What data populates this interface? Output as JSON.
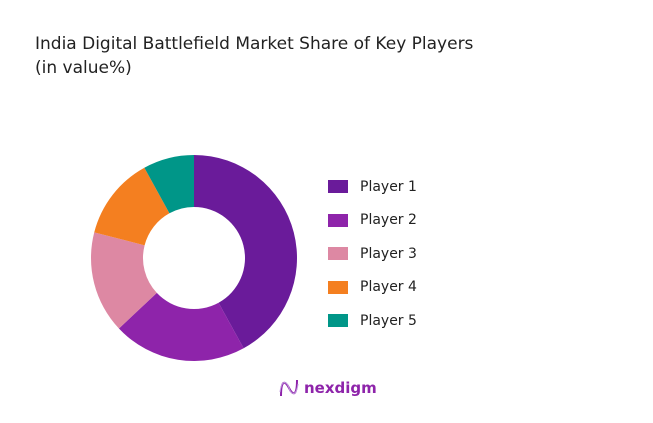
{
  "chart_data": {
    "type": "pie",
    "variant": "donut",
    "title": "India Digital Battlefield Market Share of  Key Players",
    "subtitle": "(in value%)",
    "categories": [
      "Player 1",
      "Player 2",
      "Player 3",
      "Player 4",
      "Player 5"
    ],
    "values": [
      42,
      21,
      16,
      13,
      8
    ],
    "colors": [
      "#6a1b9a",
      "#8e24aa",
      "#dd88a3",
      "#f47f20",
      "#009688"
    ],
    "legend_position": "right"
  },
  "brand": {
    "name": "nexdigm",
    "color": "#8e24aa"
  }
}
